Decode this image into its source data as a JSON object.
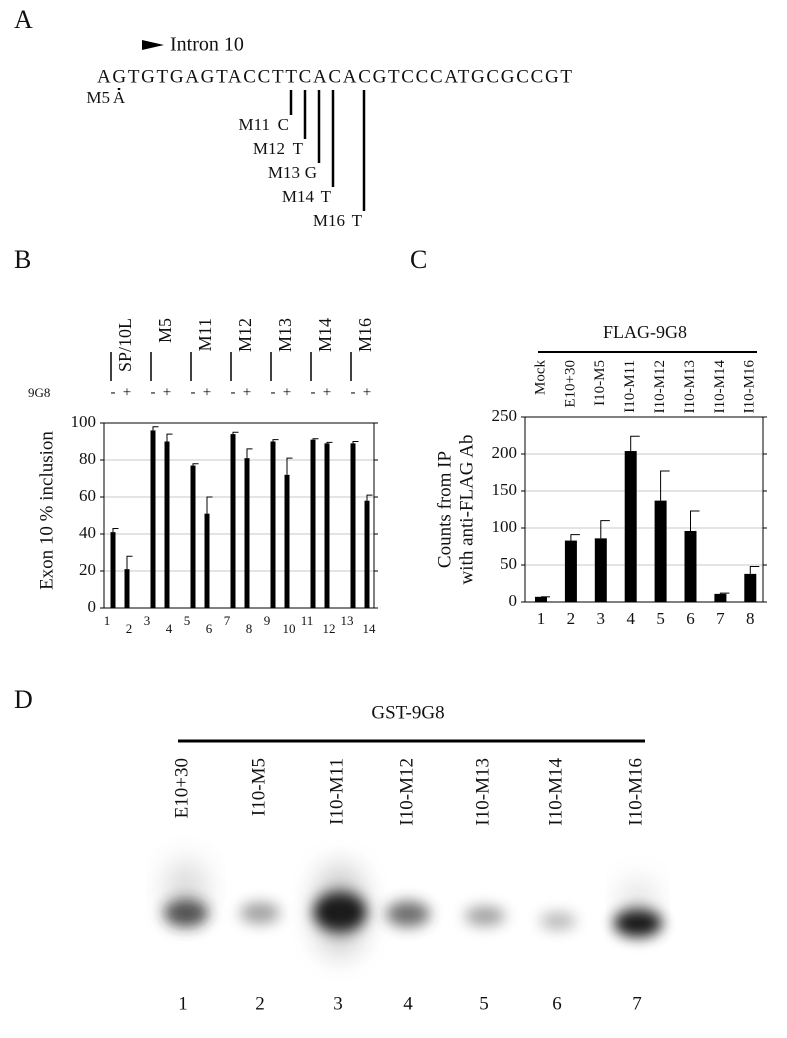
{
  "panel_a": {
    "label": "A",
    "intron_label": "Intron 10",
    "sequence": "AGTGTGAGTACCTTCACACGTCCCATGCGCCGT",
    "mutations": [
      {
        "name": "M5",
        "base": "A"
      },
      {
        "name": "M11",
        "base": "C"
      },
      {
        "name": "M12",
        "base": "T"
      },
      {
        "name": "M13",
        "base": "G"
      },
      {
        "name": "M14",
        "base": "T"
      },
      {
        "name": "M16",
        "base": "T"
      }
    ]
  },
  "chart_data": [
    {
      "type": "bar",
      "panel": "B",
      "y_label": "Exon 10 % inclusion",
      "groups": [
        "SP/10L",
        "M5",
        "M11",
        "M12",
        "M13",
        "M14",
        "M16"
      ],
      "treatment_label": "9G8",
      "treatment": [
        "-",
        "+",
        "-",
        "+",
        "-",
        "+",
        "-",
        "+",
        "-",
        "+",
        "-",
        "+",
        "-",
        "+"
      ],
      "categories": [
        "1",
        "2",
        "3",
        "4",
        "5",
        "6",
        "7",
        "8",
        "9",
        "10",
        "11",
        "12",
        "13",
        "14"
      ],
      "values": [
        41,
        21,
        96,
        90,
        77,
        51,
        94,
        81,
        90,
        72,
        91,
        89,
        89,
        58
      ],
      "errors": [
        2,
        7,
        2,
        4,
        1,
        9,
        1,
        5,
        1,
        9,
        0.5,
        0.5,
        1,
        3
      ],
      "color": "#000000",
      "ylim": [
        0,
        100
      ],
      "yticks": [
        0,
        20,
        40,
        60,
        80,
        100
      ],
      "grid": true
    },
    {
      "type": "bar",
      "panel": "C",
      "header": "FLAG-9G8",
      "y_label": [
        "Counts from IP",
        "with anti-FLAG Ab"
      ],
      "sample_labels": [
        "Mock",
        "E10+30",
        "I10-M5",
        "I10-M11",
        "I10-M12",
        "I10-M13",
        "I10-M14",
        "I10-M16"
      ],
      "categories": [
        "1",
        "2",
        "3",
        "4",
        "5",
        "6",
        "7",
        "8"
      ],
      "values": [
        7,
        83,
        86,
        204,
        137,
        96,
        11,
        38
      ],
      "errors": [
        0,
        8,
        24,
        20,
        40,
        27,
        1,
        10
      ],
      "color": "#000000",
      "ylim": [
        0,
        250
      ],
      "yticks": [
        0,
        50,
        100,
        150,
        200,
        250
      ],
      "grid": true
    }
  ],
  "panel_d": {
    "label": "D",
    "header": "GST-9G8",
    "lanes": [
      "E10+30",
      "I10-M5",
      "I10-M11",
      "I10-M12",
      "I10-M13",
      "I10-M14",
      "I10-M16"
    ],
    "lane_numbers": [
      "1",
      "2",
      "3",
      "4",
      "5",
      "6",
      "7"
    ]
  }
}
